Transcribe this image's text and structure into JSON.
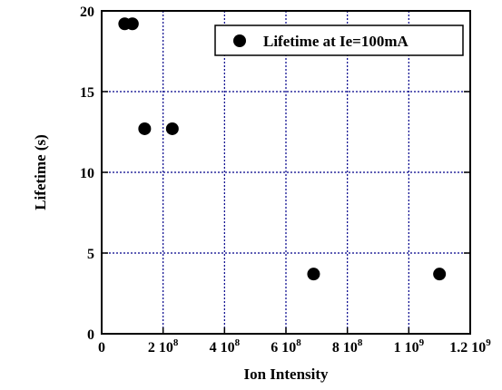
{
  "chart_data": {
    "type": "scatter",
    "title": "",
    "xlabel": "Ion Intensity",
    "ylabel": "Lifetime (s)",
    "xlim": [
      0,
      1200000000.0
    ],
    "ylim": [
      0,
      20
    ],
    "grid": true,
    "legend_position": "top-right",
    "x_ticks": [
      {
        "value": 0,
        "mantissa": "0",
        "exp": ""
      },
      {
        "value": 200000000.0,
        "mantissa": "2 10",
        "exp": "8"
      },
      {
        "value": 400000000.0,
        "mantissa": "4 10",
        "exp": "8"
      },
      {
        "value": 600000000.0,
        "mantissa": "6 10",
        "exp": "8"
      },
      {
        "value": 800000000.0,
        "mantissa": "8 10",
        "exp": "8"
      },
      {
        "value": 1000000000.0,
        "mantissa": "1 10",
        "exp": "9"
      },
      {
        "value": 1200000000.0,
        "mantissa": "1.2 10",
        "exp": "9"
      }
    ],
    "y_ticks": [
      0,
      5,
      10,
      15,
      20
    ],
    "series": [
      {
        "name": "Lifetime at Ie=100mA",
        "color": "#000000",
        "marker": "circle",
        "points": [
          {
            "x": 75000000.0,
            "y": 19.2
          },
          {
            "x": 100000000.0,
            "y": 19.2
          },
          {
            "x": 140000000.0,
            "y": 12.7
          },
          {
            "x": 230000000.0,
            "y": 12.7
          },
          {
            "x": 690000000.0,
            "y": 3.7
          },
          {
            "x": 1100000000.0,
            "y": 3.7
          }
        ]
      }
    ],
    "colors": {
      "axes": "#000000",
      "grid": "#00008b",
      "marker": "#000000"
    }
  }
}
